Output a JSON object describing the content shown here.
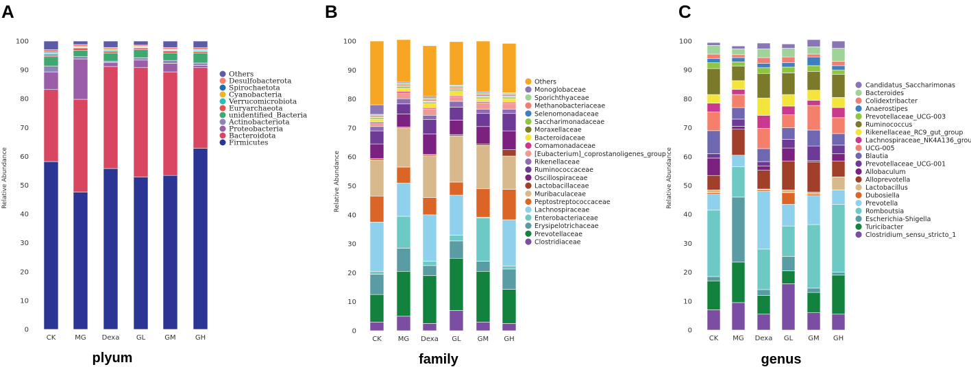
{
  "chart_data": [
    {
      "type": "bar",
      "stacked": true,
      "panel_label": "A",
      "title": "",
      "xlabel": "plyum",
      "ylabel": "Relative Abundance",
      "ylim": [
        0,
        100
      ],
      "yticks": [
        0,
        10,
        20,
        30,
        40,
        50,
        60,
        70,
        80,
        90,
        100
      ],
      "categories": [
        "CK",
        "MG",
        "Dexa",
        "GL",
        "GM",
        "GH"
      ],
      "legend_position": "right",
      "series": [
        {
          "name": "Firmicutes",
          "color": "#2b3593",
          "values": [
            58.2,
            47.6,
            55.8,
            52.8,
            53.4,
            62.8
          ]
        },
        {
          "name": "Bacteroidota",
          "color": "#d9465f",
          "values": [
            25.0,
            32.2,
            35.4,
            38.0,
            35.9,
            28.0
          ]
        },
        {
          "name": "Proteobacteria",
          "color": "#9a5ea8",
          "values": [
            6.1,
            14.0,
            1.3,
            2.6,
            3.0,
            0.8
          ]
        },
        {
          "name": "Actinobacteriota",
          "color": "#8c86b8",
          "values": [
            2.0,
            0.8,
            0.5,
            0.8,
            1.0,
            0.8
          ]
        },
        {
          "name": "unidentified_Bacteria",
          "color": "#3fa870",
          "values": [
            3.3,
            2.2,
            2.8,
            2.8,
            2.6,
            3.4
          ]
        },
        {
          "name": "Euryarchaeota",
          "color": "#e8514b",
          "values": [
            0.5,
            0.8,
            0.6,
            0.6,
            0.7,
            0.5
          ]
        },
        {
          "name": "Verrucomicrobiota",
          "color": "#2bbcc0",
          "values": [
            0.6,
            0.2,
            0.4,
            0.2,
            0.2,
            0.4
          ]
        },
        {
          "name": "Cyanobacteria",
          "color": "#f0b323",
          "values": [
            0.2,
            0.2,
            0.3,
            0.2,
            0.2,
            0.2
          ]
        },
        {
          "name": "Spirochaetota",
          "color": "#1f6fa6",
          "values": [
            0.3,
            0.1,
            0.3,
            0.2,
            0.2,
            0.2
          ]
        },
        {
          "name": "Desulfobacterota",
          "color": "#f47f6b",
          "values": [
            0.8,
            0.7,
            0.4,
            0.4,
            0.6,
            0.6
          ]
        },
        {
          "name": "Others",
          "color": "#5d5aa8",
          "values": [
            3.0,
            1.2,
            2.2,
            1.4,
            2.2,
            2.3
          ]
        }
      ]
    },
    {
      "type": "bar",
      "stacked": true,
      "panel_label": "B",
      "title": "",
      "xlabel": "family",
      "ylabel": "Relative Abundance",
      "ylim": [
        0,
        100
      ],
      "yticks": [
        0,
        10,
        20,
        30,
        40,
        50,
        60,
        70,
        80,
        90,
        100
      ],
      "categories": [
        "CK",
        "MG",
        "Dexa",
        "GL",
        "GM",
        "GH"
      ],
      "legend_position": "right",
      "series": [
        {
          "name": "Clostridiaceae",
          "color": "#7b4ea3",
          "values": [
            3.0,
            5.0,
            2.5,
            7.0,
            3.0,
            2.5
          ]
        },
        {
          "name": "Prevotellaceae",
          "color": "#13823f",
          "values": [
            9.5,
            15.5,
            16.5,
            18.0,
            17.5,
            11.8
          ]
        },
        {
          "name": "Erysipelotrichaceae",
          "color": "#5a9ca3",
          "values": [
            7.0,
            8.0,
            3.5,
            6.0,
            3.5,
            7.0
          ]
        },
        {
          "name": "Enterobacteriaceae",
          "color": "#6cc9c4",
          "values": [
            1.0,
            11.0,
            1.5,
            2.0,
            15.0,
            1.0
          ]
        },
        {
          "name": "Lachnospiraceae",
          "color": "#8fd1ec",
          "values": [
            17.0,
            11.5,
            16.0,
            13.8,
            0.2,
            16.0
          ]
        },
        {
          "name": "Peptostreptococcaceae",
          "color": "#da6526",
          "values": [
            9.0,
            5.5,
            6.0,
            4.5,
            9.8,
            10.5
          ]
        },
        {
          "name": "Muribaculaceae",
          "color": "#d7b98b",
          "values": [
            12.5,
            13.5,
            14.5,
            16.0,
            15.0,
            11.5
          ]
        },
        {
          "name": "Lactobacillaceae",
          "color": "#a0402b",
          "values": [
            0.5,
            0.3,
            0.4,
            0.4,
            0.5,
            2.2
          ]
        },
        {
          "name": "Oscillospiraceae",
          "color": "#7b2180",
          "values": [
            5.0,
            4.5,
            7.0,
            5.0,
            6.0,
            6.5
          ]
        },
        {
          "name": "Ruminococcaceae",
          "color": "#6d3a96",
          "values": [
            4.5,
            3.5,
            5.0,
            4.5,
            4.5,
            6.0
          ]
        },
        {
          "name": "Rikenellaceae",
          "color": "#8b6bb1",
          "values": [
            1.5,
            1.8,
            1.5,
            2.0,
            1.5,
            1.5
          ]
        },
        {
          "name": "[Eubacterium]_coprostanoligenes_group",
          "color": "#f19a93",
          "values": [
            1.0,
            2.0,
            2.2,
            1.5,
            2.2,
            2.0
          ]
        },
        {
          "name": "Comamonadaceae",
          "color": "#c8398f",
          "values": [
            0.5,
            0.5,
            0.4,
            0.4,
            0.4,
            0.4
          ]
        },
        {
          "name": "Bacteroidaceae",
          "color": "#f3e53b",
          "values": [
            1.0,
            1.0,
            1.5,
            1.5,
            1.0,
            1.2
          ]
        },
        {
          "name": "Moraxellaceae",
          "color": "#7a7a2a",
          "values": [
            0.3,
            0.3,
            0.3,
            0.3,
            0.3,
            0.3
          ]
        },
        {
          "name": "Saccharimonadaceae",
          "color": "#8dc63f",
          "values": [
            0.3,
            0.5,
            0.3,
            0.5,
            0.4,
            0.4
          ]
        },
        {
          "name": "Selenomonadaceae",
          "color": "#3f7fbf",
          "values": [
            0.2,
            0.2,
            0.2,
            0.2,
            0.2,
            0.2
          ]
        },
        {
          "name": "Methanobacteriaceae",
          "color": "#ee7f74",
          "values": [
            0.5,
            0.5,
            0.6,
            0.5,
            0.6,
            0.5
          ]
        },
        {
          "name": "Sporichthyaceae",
          "color": "#9fd39a",
          "values": [
            0.4,
            0.5,
            0.5,
            0.5,
            0.5,
            0.5
          ]
        },
        {
          "name": "Monoglobaceae",
          "color": "#8a75b5",
          "values": [
            3.3,
            0.4,
            0.5,
            0.2,
            0.4,
            0.2
          ]
        },
        {
          "name": "Others",
          "color": "#f6a623",
          "values": [
            22.0,
            14.5,
            17.5,
            15.0,
            17.5,
            17.0
          ]
        }
      ]
    },
    {
      "type": "bar",
      "stacked": true,
      "panel_label": "C",
      "title": "",
      "xlabel": "genus",
      "ylabel": "Relative Abundance",
      "ylim": [
        0,
        100
      ],
      "yticks": [
        0,
        10,
        20,
        30,
        40,
        50,
        60,
        70,
        80,
        90,
        100
      ],
      "categories": [
        "CK",
        "MG",
        "Dexa",
        "GL",
        "GM",
        "GH"
      ],
      "legend_position": "right",
      "series": [
        {
          "name": "Clostridium_sensu_stricto_1",
          "color": "#7b4ea3",
          "values": [
            7.0,
            9.5,
            5.5,
            16.0,
            6.0,
            5.5
          ]
        },
        {
          "name": "Turicibacter",
          "color": "#13823f",
          "values": [
            10.0,
            14.0,
            6.5,
            4.5,
            7.0,
            13.5
          ]
        },
        {
          "name": "Escherichia-Shigella",
          "color": "#5a9ca3",
          "values": [
            1.5,
            22.5,
            2.0,
            5.0,
            1.5,
            1.0
          ]
        },
        {
          "name": "Romboutsia",
          "color": "#6cc9c4",
          "values": [
            23.0,
            10.5,
            14.0,
            10.5,
            22.0,
            23.5
          ]
        },
        {
          "name": "Prevotella",
          "color": "#8fd1ec",
          "values": [
            5.5,
            4.0,
            20.0,
            7.5,
            10.0,
            5.0
          ]
        },
        {
          "name": "Dubosiella",
          "color": "#da6526",
          "values": [
            0.5,
            0.0,
            0.5,
            4.0,
            0.5,
            0.0
          ]
        },
        {
          "name": "Lactobacillus",
          "color": "#d7b98b",
          "values": [
            1.0,
            0.0,
            0.3,
            1.0,
            0.7,
            4.5
          ]
        },
        {
          "name": "Alloprevotella",
          "color": "#a0402b",
          "values": [
            5.0,
            9.0,
            6.5,
            10.0,
            10.5,
            5.5
          ]
        },
        {
          "name": "Allobaculum",
          "color": "#7b2180",
          "values": [
            6.0,
            1.0,
            1.5,
            4.5,
            0.5,
            2.5
          ]
        },
        {
          "name": "Prevotellaceae_UCG-001",
          "color": "#6d3a96",
          "values": [
            1.5,
            2.5,
            1.5,
            3.0,
            5.0,
            3.0
          ]
        },
        {
          "name": "Blautia",
          "color": "#6f68b0",
          "values": [
            8.0,
            4.0,
            4.5,
            4.0,
            5.5,
            4.0
          ]
        },
        {
          "name": "UCG-005",
          "color": "#f47f6b",
          "values": [
            6.5,
            4.5,
            7.0,
            4.5,
            8.5,
            5.5
          ]
        },
        {
          "name": "Lachnospiraceae_NK4A136_group",
          "color": "#c8398f",
          "values": [
            3.0,
            1.8,
            4.5,
            3.0,
            1.8,
            3.5
          ]
        },
        {
          "name": "Rikenellaceae_RC9_gut_group",
          "color": "#f3e53b",
          "values": [
            3.0,
            3.0,
            6.0,
            4.0,
            3.5,
            3.5
          ]
        },
        {
          "name": "Ruminococcus",
          "color": "#7a7a2a",
          "values": [
            9.0,
            5.0,
            8.5,
            7.5,
            6.5,
            8.0
          ]
        },
        {
          "name": "Prevotellaceae_UCG-003",
          "color": "#8dc63f",
          "values": [
            2.0,
            1.5,
            2.0,
            2.0,
            2.0,
            1.5
          ]
        },
        {
          "name": "Anaerostipes",
          "color": "#3f7fbf",
          "values": [
            1.5,
            1.5,
            1.5,
            1.5,
            3.0,
            1.5
          ]
        },
        {
          "name": "Colidextribacter",
          "color": "#ee7f74",
          "values": [
            1.5,
            1.0,
            2.0,
            2.0,
            1.0,
            1.5
          ]
        },
        {
          "name": "Bacteroides",
          "color": "#9fd39a",
          "values": [
            3.0,
            2.0,
            3.0,
            3.0,
            2.5,
            4.5
          ]
        },
        {
          "name": "Candidatus_Saccharimonas",
          "color": "#8a75b5",
          "values": [
            1.0,
            1.0,
            2.0,
            1.5,
            2.5,
            2.5
          ]
        }
      ]
    }
  ]
}
